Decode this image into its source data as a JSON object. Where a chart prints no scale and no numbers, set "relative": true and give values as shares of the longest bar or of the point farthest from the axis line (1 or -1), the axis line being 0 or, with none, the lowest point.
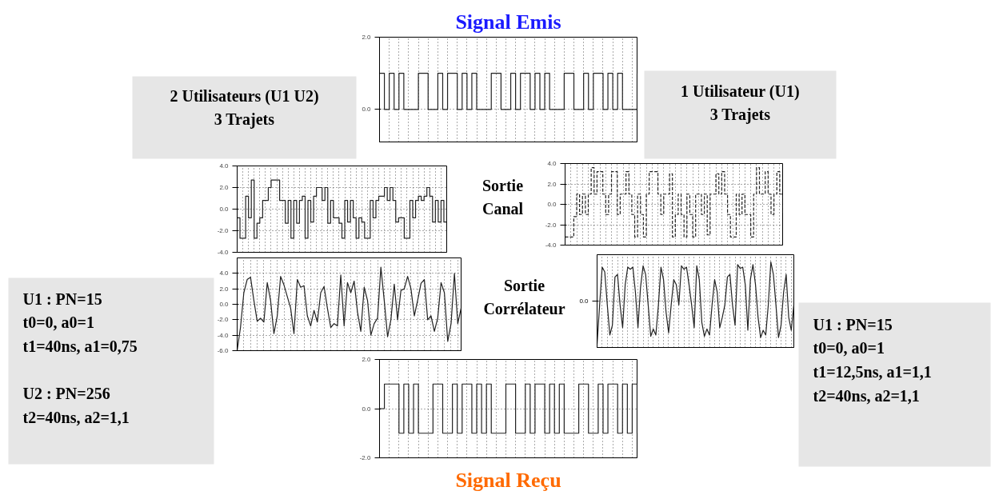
{
  "chart_data": [
    {
      "type": "step",
      "title": "Signal Emis",
      "categories": [
        null,
        null,
        null,
        null,
        null,
        null,
        null,
        null,
        null,
        null,
        null,
        null,
        null,
        null,
        null,
        null,
        null,
        null,
        null,
        null,
        null,
        null,
        null,
        null,
        null,
        null,
        null,
        null,
        null,
        null,
        null,
        null,
        null,
        null,
        null,
        null,
        null,
        null,
        null,
        null,
        null,
        null,
        null,
        null,
        null,
        null,
        null,
        null,
        null,
        null,
        null,
        null,
        null,
        null
      ],
      "ylim": [
        -0.9,
        2.0
      ],
      "yticks": [
        {
          "value": 2,
          "label": "2.0"
        },
        {
          "value": 0,
          "label": "0.0"
        }
      ],
      "grid": true,
      "tick_labels": "y",
      "series": [
        {
          "color": "#222222",
          "values": [
            1,
            0,
            1,
            0,
            1,
            0,
            0,
            0,
            1,
            1,
            0,
            0,
            1,
            0,
            1,
            1,
            0,
            1,
            0,
            1,
            0,
            0,
            0,
            1,
            1,
            0,
            0,
            1,
            0,
            1,
            1,
            0,
            1,
            0,
            1,
            0,
            0,
            0,
            1,
            1,
            0,
            0,
            1,
            0,
            1,
            1,
            0,
            1,
            0,
            1,
            0,
            0,
            0,
            1
          ]
        }
      ]
    },
    {
      "type": "step",
      "categories": [
        null,
        null,
        null,
        null,
        null,
        null,
        null,
        null,
        null,
        null,
        null,
        null,
        null,
        null,
        null,
        null,
        null,
        null,
        null,
        null,
        null,
        null,
        null,
        null,
        null,
        null,
        null,
        null,
        null,
        null,
        null,
        null,
        null,
        null,
        null,
        null,
        null,
        null,
        null,
        null,
        null,
        null,
        null,
        null,
        null,
        null,
        null,
        null,
        null,
        null,
        null,
        null,
        null,
        null,
        null,
        null,
        null,
        null,
        null,
        null,
        null,
        null,
        null,
        null,
        null,
        null,
        null,
        null,
        null,
        null,
        null,
        null,
        null,
        null,
        null
      ],
      "ylim": [
        -4.0,
        4.0
      ],
      "yticks": [
        {
          "value": 4,
          "label": "4.0"
        },
        {
          "value": 2,
          "label": "2.0"
        },
        {
          "value": 0,
          "label": "0.0"
        },
        {
          "value": -2,
          "label": "-2.0"
        },
        {
          "value": -4,
          "label": "-4.0"
        }
      ],
      "grid": true,
      "tick_labels": "y",
      "series": [
        {
          "color": "#222222",
          "values": [
            -0.8,
            -2.7,
            -2.7,
            1.2,
            -0.8,
            2.7,
            -2.7,
            -1.3,
            -0.8,
            0.8,
            0.8,
            2.0,
            2.7,
            2.7,
            2.7,
            0.8,
            0.8,
            -1.3,
            0.8,
            -2.7,
            0.8,
            -1.3,
            0.8,
            1.2,
            -2.7,
            0.8,
            -1.2,
            1.2,
            2.0,
            2.0,
            0.8,
            2.0,
            -1.3,
            0.8,
            -0.8,
            -0.8,
            -1.3,
            -2.7,
            0.8,
            -1.2,
            0.8,
            -0.8,
            -2.7,
            -0.8,
            -1.2,
            -2.7,
            -2.7,
            0.8,
            -0.8,
            0.8,
            1.2,
            1.2,
            2.0,
            0.8,
            2.0,
            0.8,
            -1.2,
            -0.8,
            -0.8,
            -2.7,
            -2.7,
            0.8,
            -0.8,
            0.8,
            1.2,
            0.8,
            1.2,
            2.0,
            1.2,
            -1.2,
            0.8,
            -1.2,
            0.8,
            -1.2,
            0.8
          ]
        }
      ]
    },
    {
      "type": "step",
      "categories": [
        null,
        null,
        null,
        null,
        null,
        null,
        null,
        null,
        null,
        null,
        null,
        null,
        null,
        null,
        null,
        null,
        null,
        null,
        null,
        null,
        null,
        null,
        null,
        null,
        null,
        null,
        null,
        null,
        null,
        null,
        null,
        null,
        null,
        null,
        null,
        null,
        null,
        null,
        null,
        null,
        null,
        null,
        null,
        null,
        null,
        null,
        null,
        null,
        null,
        null,
        null,
        null,
        null,
        null,
        null,
        null,
        null,
        null,
        null,
        null,
        null,
        null,
        null,
        null,
        null,
        null,
        null,
        null,
        null,
        null,
        null,
        null,
        null,
        null,
        null,
        null
      ],
      "ylim": [
        -4.0,
        4.0
      ],
      "yticks": [
        {
          "value": 4,
          "label": "4.0"
        },
        {
          "value": 2,
          "label": "2.0"
        },
        {
          "value": 0,
          "label": "0.0"
        },
        {
          "value": -2,
          "label": "-2.0"
        },
        {
          "value": -4,
          "label": "-4.0"
        }
      ],
      "grid": true,
      "tick_labels": "y",
      "line_style": "dashed",
      "series": [
        {
          "color": "#222222",
          "values": [
            -3.2,
            -3.2,
            -3.2,
            -1.2,
            1.0,
            -1.0,
            1.0,
            -1.0,
            1.0,
            3.6,
            1.0,
            3.2,
            3.2,
            1.0,
            -1.0,
            1.0,
            3.2,
            3.2,
            -1.0,
            1.0,
            1.0,
            3.2,
            1.0,
            -1.0,
            -3.2,
            1.0,
            -1.0,
            -3.2,
            1.0,
            3.2,
            3.2,
            3.2,
            1.0,
            -1.0,
            1.0,
            1.0,
            3.0,
            -3.2,
            -1.0,
            1.0,
            -1.0,
            -3.2,
            1.0,
            -1.0,
            -3.2,
            1.0,
            1.0,
            -1.0,
            1.0,
            -3.0,
            1.0,
            1.0,
            3.0,
            1.0,
            3.2,
            1.0,
            -1.0,
            -3.2,
            -3.2,
            1.0,
            -1.0,
            1.0,
            -1.0,
            -1.0,
            -3.2,
            1.0,
            3.6,
            1.0,
            1.0,
            3.2,
            1.0,
            -1.0,
            1.0,
            3.2,
            1.0,
            -1.0
          ]
        }
      ]
    },
    {
      "type": "line",
      "categories": [
        null,
        null,
        null,
        null,
        null,
        null,
        null,
        null,
        null,
        null,
        null,
        null,
        null,
        null,
        null,
        null,
        null,
        null,
        null,
        null,
        null,
        null,
        null,
        null,
        null,
        null,
        null,
        null,
        null,
        null,
        null,
        null,
        null,
        null,
        null,
        null,
        null,
        null,
        null,
        null,
        null,
        null,
        null,
        null,
        null,
        null,
        null,
        null,
        null,
        null,
        null,
        null,
        null,
        null,
        null,
        null,
        null,
        null,
        null,
        null,
        null,
        null,
        null,
        null,
        null,
        null,
        null,
        null
      ],
      "ylim": [
        -6.0,
        6.0
      ],
      "yticks": [
        {
          "value": 4,
          "label": "4.0"
        },
        {
          "value": 2,
          "label": "2.0"
        },
        {
          "value": 0,
          "label": "0.0"
        },
        {
          "value": -2,
          "label": "-2.0"
        },
        {
          "value": -4,
          "label": "-4.0"
        },
        {
          "value": -6,
          "label": "-6.0"
        }
      ],
      "grid": true,
      "tick_labels": "y",
      "series": [
        {
          "color": "#222222",
          "values": [
            -6.0,
            -3.0,
            1.5,
            3.2,
            3.5,
            0.5,
            -2.2,
            -1.8,
            -2.3,
            2.8,
            0.5,
            -3.8,
            -1.5,
            3.6,
            2.5,
            1.0,
            -0.5,
            -3.8,
            3.2,
            2.2,
            2.4,
            -1.5,
            -2.8,
            -0.8,
            -2.3,
            1.5,
            2.3,
            -0.5,
            -3.0,
            -2.5,
            -2.8,
            3.8,
            -2.8,
            2.8,
            1.5,
            3.0,
            -1.0,
            -3.5,
            2.2,
            0.5,
            -4.0,
            -2.5,
            -1.8,
            4.8,
            0.5,
            -4.2,
            -2.0,
            2.6,
            -2.0,
            1.8,
            2.0,
            3.6,
            2.0,
            -1.5,
            0.5,
            2.7,
            3.2,
            -2.0,
            -1.5,
            -3.5,
            -1.8,
            2.8,
            1.5,
            -4.8,
            -2.5,
            4.0,
            -2.5,
            -0.5
          ]
        }
      ]
    },
    {
      "type": "line",
      "relative": true,
      "categories": [
        null,
        null,
        null,
        null,
        null,
        null,
        null,
        null,
        null,
        null,
        null,
        null,
        null,
        null,
        null,
        null,
        null,
        null,
        null,
        null,
        null,
        null,
        null,
        null,
        null,
        null,
        null,
        null,
        null,
        null,
        null,
        null,
        null,
        null,
        null,
        null,
        null,
        null,
        null,
        null,
        null,
        null,
        null,
        null,
        null,
        null,
        null,
        null,
        null,
        null,
        null,
        null,
        null,
        null,
        null,
        null,
        null,
        null,
        null,
        null,
        null,
        null,
        null,
        null,
        null,
        null,
        null,
        null,
        null,
        null,
        null,
        null,
        null,
        null,
        null,
        null,
        null,
        null
      ],
      "grid": true,
      "tick_labels": false,
      "ref_lines": [
        {
          "axis": "y",
          "value": 0,
          "label": "0.0",
          "line_style": "dotted"
        }
      ],
      "series": [
        {
          "color": "#222222",
          "values": [
            -1.0,
            -0.09,
            0.79,
            0.68,
            -0.09,
            -0.79,
            -0.56,
            0.56,
            0.62,
            -0.09,
            -0.62,
            0.38,
            0.79,
            0.74,
            0.79,
            0.21,
            -0.62,
            0.32,
            0.82,
            0.62,
            -0.09,
            -0.82,
            -0.65,
            -0.79,
            -0.09,
            0.79,
            0.5,
            -0.26,
            -0.74,
            -0.09,
            0.5,
            0.38,
            -0.09,
            0.82,
            0.74,
            0.79,
            0.38,
            -0.09,
            -0.62,
            0.82,
            0.5,
            -0.5,
            -0.82,
            -0.65,
            -0.79,
            -0.09,
            0.5,
            0.21,
            -0.62,
            -0.38,
            -0.09,
            0.56,
            0.62,
            -0.09,
            -0.56,
            0.85,
            0.76,
            0.79,
            0.38,
            -0.68,
            0.5,
            0.85,
            0.38,
            -0.38,
            -0.85,
            -0.68,
            -0.79,
            -0.09,
            0.91,
            0.62,
            -0.09,
            -0.85,
            -0.56,
            0.21,
            0.62,
            -0.38,
            -0.68,
            -0.09
          ]
        }
      ]
    },
    {
      "type": "step",
      "title": "Signal Reçu",
      "categories": [
        null,
        null,
        null,
        null,
        null,
        null,
        null,
        null,
        null,
        null,
        null,
        null,
        null,
        null,
        null,
        null,
        null,
        null,
        null,
        null,
        null,
        null,
        null,
        null,
        null,
        null,
        null,
        null,
        null,
        null,
        null,
        null,
        null,
        null,
        null,
        null,
        null,
        null,
        null,
        null,
        null,
        null,
        null,
        null,
        null,
        null,
        null,
        null,
        null,
        null,
        null,
        null,
        null,
        null
      ],
      "ylim": [
        -2.0,
        2.0
      ],
      "yticks": [
        {
          "value": 2,
          "label": "2.0"
        },
        {
          "value": 0,
          "label": "0.0"
        },
        {
          "value": -2,
          "label": "-2.0"
        }
      ],
      "grid": true,
      "tick_labels": "y",
      "series": [
        {
          "color": "#222222",
          "values": [
            0,
            1,
            1,
            1,
            -1,
            1,
            -1,
            1,
            -1,
            -1,
            -1,
            1,
            1,
            -1,
            -1,
            1,
            -1,
            1,
            1,
            -1,
            1,
            -1,
            1,
            -1,
            -1,
            -1,
            1,
            1,
            -1,
            -1,
            1,
            -1,
            1,
            1,
            -1,
            1,
            -1,
            1,
            -1,
            -1,
            -1,
            1,
            1,
            -1,
            -1,
            1,
            -1,
            1,
            1,
            -1,
            1,
            -1,
            1,
            -1
          ]
        }
      ]
    },
    {
      "type": "other",
      "annotations": [
        "2 Utilisateurs (U1 U2)\n3 Trajets",
        "1 Utilisateur (U1)\n3 Trajets",
        "Sortie\nCanal",
        "Sortie\nCorrélateur",
        "U1 : PN=15\nt0=0,      a0=1\nt1=40ns,    a1=0,75\n\nU2 : PN=256\nt2=40ns,     a2=1,1",
        "U1 : PN=15\nt0=0,      a0=1\nt1=12,5ns,  a1=1,1\nt2=40ns,     a2=1,1"
      ]
    }
  ]
}
